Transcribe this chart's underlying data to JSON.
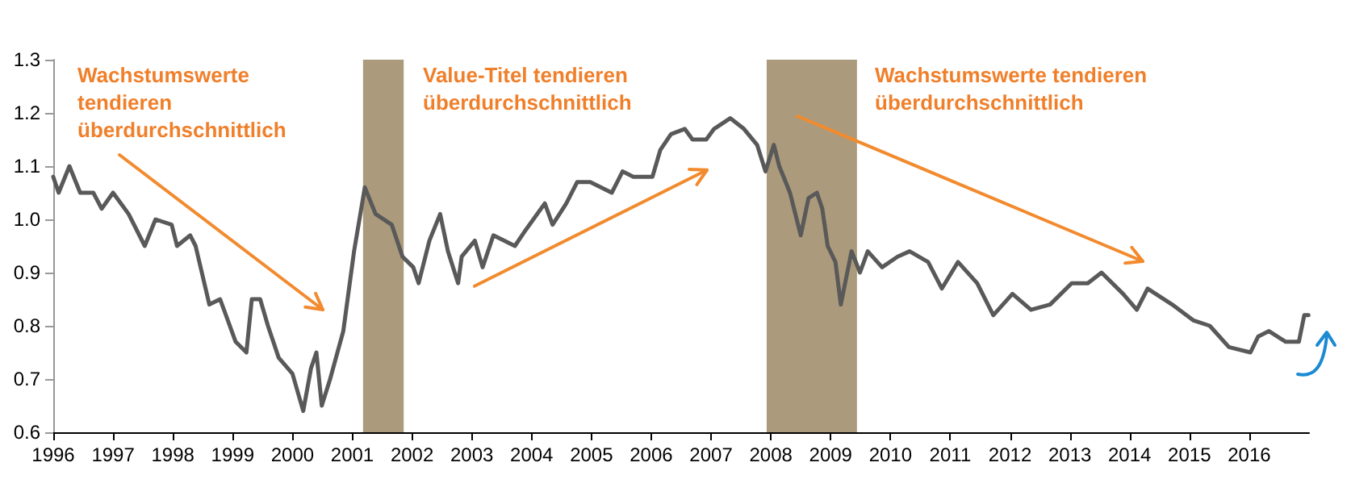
{
  "chart_data": {
    "type": "line",
    "annotations": [
      "Wachstumswerte tendieren überdurchschnittlich",
      "Value-Titel tendieren überdurchschnittlich",
      "Wachstumswerte tendieren überdurchschnittlich"
    ],
    "xlim": [
      1996,
      2017
    ],
    "xticks": [
      1996,
      1997,
      1998,
      1999,
      2000,
      2001,
      2002,
      2003,
      2004,
      2005,
      2006,
      2007,
      2008,
      2009,
      2010,
      2011,
      2012,
      2013,
      2014,
      2015,
      2016
    ],
    "ylim": [
      0.6,
      1.3
    ],
    "yticks": [
      0.6,
      0.7,
      0.8,
      0.9,
      {
        "value": 1,
        "label": "1.0"
      },
      1.1,
      1.2,
      1.3
    ],
    "grid": false,
    "marker": "none",
    "line_style": "solid",
    "bands": [
      {
        "axis": "x",
        "from": 2001.18,
        "to": 2001.86,
        "color": "#ab9b7c"
      },
      {
        "axis": "x",
        "from": 2007.93,
        "to": 2009.44,
        "color": "#ab9b7c"
      }
    ],
    "series": [
      {
        "color": "#595959",
        "x": [
          1996.0,
          1996.09,
          1996.27,
          1996.45,
          1996.67,
          1996.81,
          1997.0,
          1997.26,
          1997.53,
          1997.71,
          1997.98,
          1998.07,
          1998.29,
          1998.38,
          1998.61,
          1998.79,
          1999.05,
          1999.23,
          1999.32,
          1999.46,
          1999.59,
          1999.77,
          2000.0,
          2000.18,
          2000.31,
          2000.4,
          2000.49,
          2000.63,
          2000.85,
          2001.03,
          2001.21,
          2001.39,
          2001.66,
          2001.84,
          2002.02,
          2002.11,
          2002.29,
          2002.47,
          2002.6,
          2002.77,
          2002.83,
          2003.05,
          2003.18,
          2003.36,
          2003.72,
          2003.9,
          2004.22,
          2004.35,
          2004.58,
          2004.76,
          2004.98,
          2005.34,
          2005.52,
          2005.7,
          2006.02,
          2006.15,
          2006.33,
          2006.56,
          2006.69,
          2006.92,
          2007.05,
          2007.32,
          2007.55,
          2007.77,
          2007.91,
          2008.05,
          2008.14,
          2008.32,
          2008.5,
          2008.63,
          2008.77,
          2008.86,
          2008.95,
          2009.08,
          2009.17,
          2009.35,
          2009.49,
          2009.62,
          2009.86,
          2010.12,
          2010.32,
          2010.63,
          2010.86,
          2011.13,
          2011.45,
          2011.72,
          2012.04,
          2012.35,
          2012.67,
          2013.03,
          2013.3,
          2013.53,
          2013.89,
          2014.12,
          2014.3,
          2014.71,
          2015.07,
          2015.34,
          2015.66,
          2016.02,
          2016.15,
          2016.33,
          2016.61,
          2016.83,
          2016.92,
          2016.99
        ],
        "values": [
          1.08,
          1.05,
          1.1,
          1.05,
          1.05,
          1.02,
          1.05,
          1.01,
          0.95,
          1.0,
          0.99,
          0.95,
          0.97,
          0.95,
          0.84,
          0.85,
          0.77,
          0.75,
          0.85,
          0.85,
          0.8,
          0.74,
          0.71,
          0.64,
          0.72,
          0.75,
          0.65,
          0.7,
          0.79,
          0.94,
          1.06,
          1.01,
          0.99,
          0.93,
          0.91,
          0.88,
          0.96,
          1.01,
          0.94,
          0.88,
          0.93,
          0.96,
          0.91,
          0.97,
          0.95,
          0.98,
          1.03,
          0.99,
          1.03,
          1.07,
          1.07,
          1.05,
          1.09,
          1.08,
          1.08,
          1.13,
          1.16,
          1.17,
          1.15,
          1.15,
          1.17,
          1.19,
          1.17,
          1.14,
          1.09,
          1.14,
          1.1,
          1.05,
          0.97,
          1.04,
          1.05,
          1.02,
          0.95,
          0.92,
          0.84,
          0.94,
          0.9,
          0.94,
          0.91,
          0.93,
          0.94,
          0.92,
          0.87,
          0.92,
          0.88,
          0.82,
          0.86,
          0.83,
          0.84,
          0.88,
          0.88,
          0.9,
          0.86,
          0.83,
          0.87,
          0.84,
          0.81,
          0.8,
          0.76,
          0.75,
          0.78,
          0.79,
          0.77,
          0.77,
          0.82,
          0.82
        ]
      }
    ]
  }
}
